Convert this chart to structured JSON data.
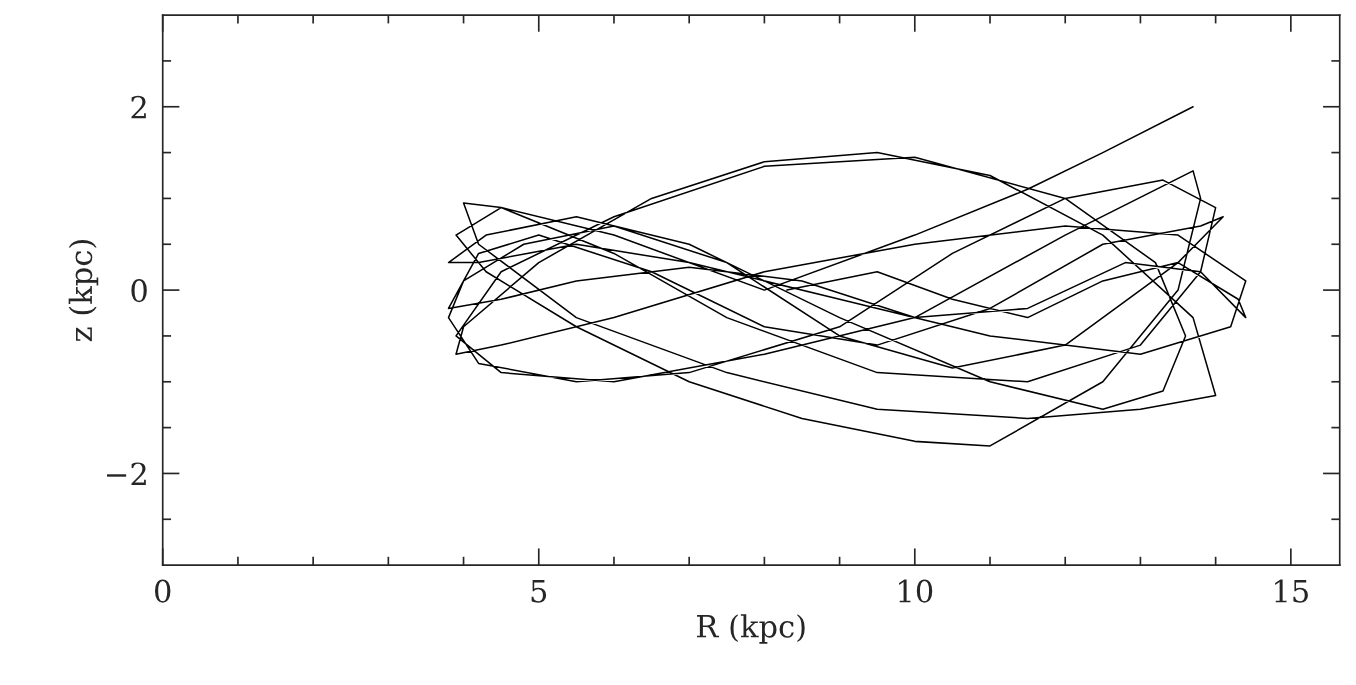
{
  "chart_data": {
    "type": "line",
    "xlabel": "R (kpc)",
    "ylabel": "z (kpc)",
    "xlim": [
      0,
      15.65
    ],
    "ylim": [
      -3,
      3
    ],
    "xticks": [
      0,
      {
        "value": 1,
        "label": null
      },
      {
        "value": 2,
        "label": null
      },
      {
        "value": 3,
        "label": null
      },
      {
        "value": 4,
        "label": null
      },
      5,
      {
        "value": 6,
        "label": null
      },
      {
        "value": 7,
        "label": null
      },
      {
        "value": 8,
        "label": null
      },
      {
        "value": 9,
        "label": null
      },
      10,
      {
        "value": 11,
        "label": null
      },
      {
        "value": 12,
        "label": null
      },
      {
        "value": 13,
        "label": null
      },
      {
        "value": 14,
        "label": null
      },
      15
    ],
    "yticks": [
      {
        "value": -2.5,
        "label": null
      },
      {
        "value": -2,
        "label": "−2"
      },
      {
        "value": -1.5,
        "label": null
      },
      {
        "value": -1,
        "label": null
      },
      {
        "value": -0.5,
        "label": null
      },
      0,
      {
        "value": 0.5,
        "label": null
      },
      {
        "value": 1,
        "label": null
      },
      {
        "value": 1.5,
        "label": null
      },
      2,
      {
        "value": 2.5,
        "label": null
      }
    ],
    "marker": "none",
    "line_style": "solid",
    "series": [
      {
        "color": "#000000",
        "x": [
          8.3,
          9.5,
          10.5,
          11.5,
          12.5,
          13.5,
          14.3,
          14.4,
          13.8,
          12.8,
          11.5,
          10,
          8.5,
          7,
          5.5,
          4.5,
          3.8,
          4.2,
          5,
          6.5,
          8,
          9.5,
          11,
          12.5,
          13.8,
          14.1,
          13.5,
          12,
          10.5,
          9,
          7.5,
          6,
          4.8,
          4,
          3.8,
          4.2,
          5.5,
          7,
          9,
          10.5,
          12,
          13.3,
          14,
          13.8,
          13,
          11.5,
          9.5,
          7.5,
          6,
          4.5,
          4,
          4.2,
          5.5,
          7.5,
          9.5,
          11.5,
          13,
          14,
          13.7,
          12.5,
          11,
          9.5,
          8,
          6.5,
          5,
          4,
          3.9,
          4.5,
          6,
          8,
          10,
          12,
          13.5,
          14.4,
          14.2,
          13,
          11,
          9,
          7,
          5.5,
          4.2,
          3.8,
          4.3,
          5.5,
          7,
          9,
          11,
          12.5,
          13.3,
          13.6,
          13.2,
          12,
          10,
          8,
          6,
          4.5,
          3.9,
          4.5,
          6,
          8,
          10,
          12,
          13.7,
          13.8,
          13.5,
          12.5,
          11,
          10,
          8.5,
          7,
          5.5,
          4.3,
          3.9,
          4.5,
          6,
          8,
          10,
          11.5,
          12.5,
          13.7
        ],
        "values": [
          0,
          0.2,
          -0.1,
          -0.3,
          0.1,
          0.3,
          -0.1,
          -0.3,
          0.2,
          0.3,
          -0.2,
          -0.3,
          0.1,
          0.25,
          0.1,
          -0.1,
          -0.2,
          0.4,
          0.6,
          0.2,
          -0.4,
          -0.6,
          -0.2,
          0.5,
          0.7,
          0.8,
          0.3,
          -0.6,
          -0.85,
          -0.5,
          0.3,
          0.7,
          0.5,
          0.1,
          -0.3,
          -0.8,
          -1.0,
          -0.9,
          -0.4,
          0.4,
          1.0,
          1.2,
          0.9,
          0.2,
          -0.6,
          -1.0,
          -0.9,
          -0.3,
          0.4,
          0.9,
          0.95,
          0.5,
          -0.3,
          -0.9,
          -1.3,
          -1.4,
          -1.3,
          -1.15,
          -0.3,
          0.6,
          1.25,
          1.5,
          1.4,
          1.0,
          0.3,
          -0.4,
          -0.7,
          -0.6,
          -0.3,
          0.2,
          0.5,
          0.7,
          0.6,
          0.1,
          -0.4,
          -0.7,
          -0.5,
          -0.1,
          0.3,
          0.5,
          0.3,
          0.3,
          0.6,
          0.8,
          0.5,
          -0.3,
          -1.0,
          -1.3,
          -1.1,
          -0.5,
          0.3,
          1.0,
          1.45,
          1.35,
          0.8,
          0.2,
          -0.5,
          -0.9,
          -1.0,
          -0.7,
          -0.3,
          0.6,
          1.3,
          1.0,
          0.0,
          -1.0,
          -1.7,
          -1.65,
          -1.4,
          -1.0,
          -0.4,
          0.2,
          0.6,
          0.9,
          0.6,
          0.0,
          0.6,
          1.1,
          1.5,
          2.0
        ]
      }
    ]
  }
}
